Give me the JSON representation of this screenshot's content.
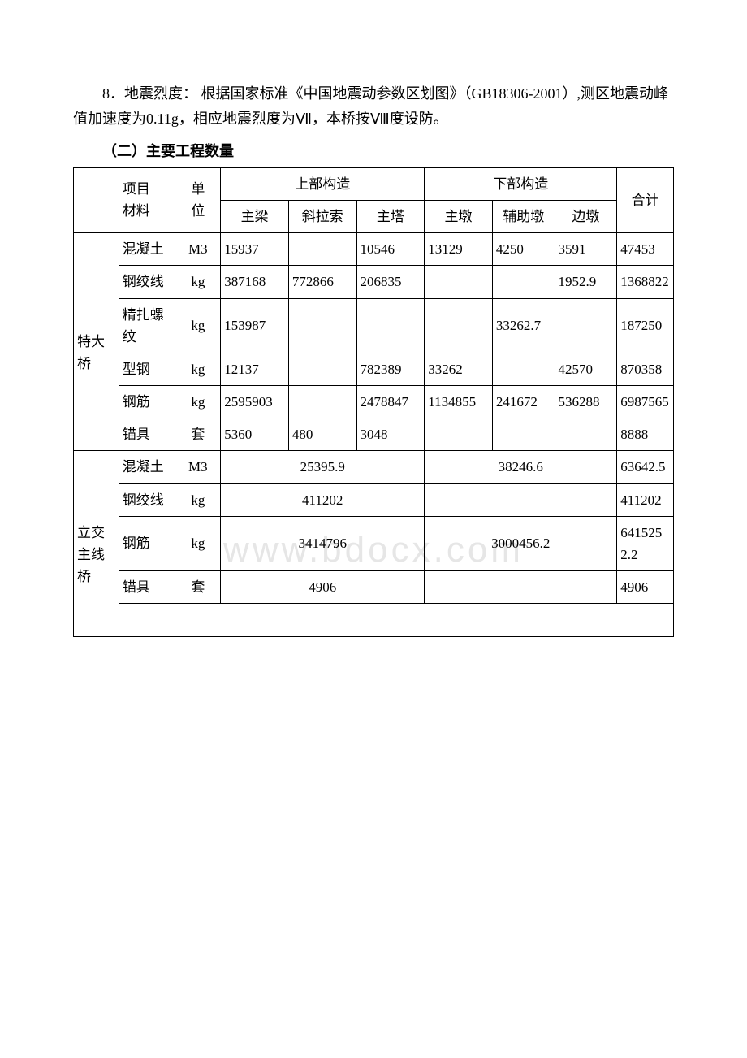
{
  "intro": {
    "paragraph": "8．地震烈度： 根据国家标准《中国地震动参数区划图》（GB18306-2001）,测区地震动峰值加速度为0.11g，相应地震烈度为Ⅶ，本桥按Ⅷ度设防。",
    "heading": "（二）主要工程数量"
  },
  "watermark": "www.bdocx.com",
  "table": {
    "background": "#ffffff",
    "border_color": "#000000",
    "font_size": 17,
    "col_widths": [
      "8%",
      "10%",
      "8%",
      "12%",
      "12%",
      "12%",
      "12%",
      "11%",
      "11%",
      "10%"
    ],
    "header": {
      "r1c0": "",
      "r1c1": "项目　　　材料",
      "r1c2": "单",
      "r1c3_span": "上部构造",
      "r1c4_span": "下部构造",
      "r1c5": "合计",
      "r2c2": "位",
      "r2_main_beam": "主梁",
      "r2_cable": "斜拉索",
      "r2_tower": "主塔",
      "r2_main_pier": "主墩",
      "r2_aux_pier": "辅助墩",
      "r2_side_pier": "边墩"
    },
    "sections": [
      {
        "label": "　　特大桥",
        "rows": [
          {
            "item": "混凝土",
            "unit": "M3",
            "beam": "15937",
            "cable": "",
            "tower": "10546",
            "mpier": "13129",
            "apier": "4250",
            "spier": "3591",
            "total": "47453"
          },
          {
            "item": "钢绞线",
            "unit": "kg",
            "beam": "387168",
            "cable": "772866",
            "tower": "206835",
            "mpier": "",
            "apier": "",
            "spier": "1952.9",
            "total": "1368822"
          },
          {
            "item": "精扎螺纹",
            "unit": "kg",
            "beam": "153987",
            "cable": "",
            "tower": "",
            "mpier": "",
            "apier": "33262.7",
            "spier": "",
            "total": "187250"
          },
          {
            "item": "型钢",
            "unit": "kg",
            "beam": "12137",
            "cable": "",
            "tower": "782389",
            "mpier": "33262",
            "apier": "",
            "spier": "42570",
            "total": "870358"
          },
          {
            "item": "钢筋",
            "unit": "kg",
            "beam": "2595903",
            "cable": "",
            "tower": "2478847",
            "mpier": "1134855",
            "apier": "241672",
            "spier": "536288",
            "total": "6987565"
          },
          {
            "item": "锚具",
            "unit": "套",
            "beam": "5360",
            "cable": "480",
            "tower": "3048",
            "mpier": "",
            "apier": "",
            "spier": "",
            "total": "8888"
          }
        ]
      },
      {
        "label": "　　立交主线桥",
        "rows": [
          {
            "item": "混凝土",
            "unit": "M3",
            "upper": "25395.9",
            "lower": "38246.6",
            "total": "63642.5"
          },
          {
            "item": "钢绞线",
            "unit": "kg",
            "upper": "411202",
            "lower": "",
            "total": "411202"
          },
          {
            "item": "钢筋",
            "unit": "kg",
            "upper": "3414796",
            "lower": "3000456.2",
            "total": "6415252.2"
          },
          {
            "item": "锚具",
            "unit": "套",
            "upper": "4906",
            "lower": "",
            "total": "4906"
          }
        ]
      }
    ]
  }
}
